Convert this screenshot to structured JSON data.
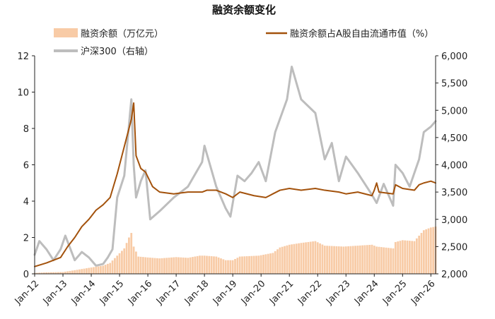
{
  "chart_data": {
    "type": "bar+line",
    "title": "融资余额变化",
    "legend": {
      "placement": "top",
      "items": [
        {
          "label": "融资余额（万亿元）",
          "kind": "bar",
          "color": "#F8CBA6"
        },
        {
          "label": "融资余额占A股自由流通市值（%）",
          "kind": "line",
          "color": "#A3520C"
        },
        {
          "label": "沪深300（右轴）",
          "kind": "line",
          "color": "#BDBDBD"
        }
      ]
    },
    "x_axis": {
      "type": "date",
      "range": [
        "2012-01",
        "2026-03"
      ],
      "tick_labels": [
        "Jan-12",
        "Jan-13",
        "Jan-14",
        "Jan-15",
        "Jan-16",
        "Jan-17",
        "Jan-18",
        "Jan-19",
        "Jan-20",
        "Jan-21",
        "Jan-22",
        "Jan-23",
        "Jan-24",
        "Jan-25",
        "Jan-26"
      ]
    },
    "y_left": {
      "range": [
        0,
        12
      ],
      "ticks": [
        "0",
        "2",
        "4",
        "6",
        "8",
        "10",
        "12"
      ]
    },
    "y_right": {
      "range": [
        2000,
        6000
      ],
      "ticks": [
        "2,000",
        "2,500",
        "3,000",
        "3,500",
        "4,000",
        "4,500",
        "5,000",
        "5,500",
        "6,000"
      ]
    },
    "grid": false,
    "series": [
      {
        "name": "融资余额（万亿元）",
        "axis": "left",
        "color": "#F8CBA6",
        "points": [
          [
            "2012-01",
            0.05
          ],
          [
            "2012-06",
            0.08
          ],
          [
            "2013-01",
            0.1
          ],
          [
            "2013-06",
            0.2
          ],
          [
            "2014-01",
            0.35
          ],
          [
            "2014-06",
            0.45
          ],
          [
            "2014-09",
            0.6
          ],
          [
            "2014-12",
            1.0
          ],
          [
            "2015-03",
            1.4
          ],
          [
            "2015-05",
            2.0
          ],
          [
            "2015-06",
            2.25
          ],
          [
            "2015-07",
            1.5
          ],
          [
            "2015-09",
            0.95
          ],
          [
            "2016-01",
            0.9
          ],
          [
            "2016-06",
            0.85
          ],
          [
            "2017-01",
            0.92
          ],
          [
            "2017-06",
            0.88
          ],
          [
            "2017-11",
            1.0
          ],
          [
            "2018-01",
            1.0
          ],
          [
            "2018-06",
            0.95
          ],
          [
            "2018-10",
            0.75
          ],
          [
            "2019-01",
            0.75
          ],
          [
            "2019-04",
            0.95
          ],
          [
            "2019-12",
            1.0
          ],
          [
            "2020-06",
            1.15
          ],
          [
            "2020-09",
            1.45
          ],
          [
            "2021-01",
            1.6
          ],
          [
            "2021-06",
            1.7
          ],
          [
            "2021-12",
            1.8
          ],
          [
            "2022-04",
            1.55
          ],
          [
            "2022-12",
            1.5
          ],
          [
            "2023-06",
            1.55
          ],
          [
            "2023-12",
            1.6
          ],
          [
            "2024-02",
            1.5
          ],
          [
            "2024-09",
            1.4
          ],
          [
            "2024-10",
            1.75
          ],
          [
            "2025-01",
            1.85
          ],
          [
            "2025-06",
            1.8
          ],
          [
            "2025-08",
            2.1
          ],
          [
            "2025-10",
            2.4
          ],
          [
            "2026-01",
            2.55
          ],
          [
            "2026-03",
            2.6
          ]
        ]
      },
      {
        "name": "融资余额占A股自由流通市值（%）",
        "axis": "left",
        "color": "#A3520C",
        "points": [
          [
            "2012-01",
            0.4
          ],
          [
            "2012-06",
            0.6
          ],
          [
            "2012-12",
            0.9
          ],
          [
            "2013-03",
            1.5
          ],
          [
            "2013-06",
            2.0
          ],
          [
            "2013-09",
            2.6
          ],
          [
            "2013-12",
            3.0
          ],
          [
            "2014-03",
            3.5
          ],
          [
            "2014-06",
            3.8
          ],
          [
            "2014-09",
            4.2
          ],
          [
            "2014-12",
            5.5
          ],
          [
            "2015-02",
            6.5
          ],
          [
            "2015-04",
            7.5
          ],
          [
            "2015-06",
            8.5
          ],
          [
            "2015-07",
            9.4
          ],
          [
            "2015-08",
            6.5
          ],
          [
            "2015-10",
            5.8
          ],
          [
            "2015-12",
            5.6
          ],
          [
            "2016-03",
            4.8
          ],
          [
            "2016-06",
            4.5
          ],
          [
            "2016-12",
            4.4
          ],
          [
            "2017-06",
            4.5
          ],
          [
            "2017-12",
            4.5
          ],
          [
            "2018-02",
            4.6
          ],
          [
            "2018-06",
            4.6
          ],
          [
            "2018-10",
            4.4
          ],
          [
            "2019-01",
            4.2
          ],
          [
            "2019-04",
            4.5
          ],
          [
            "2019-10",
            4.3
          ],
          [
            "2020-03",
            4.2
          ],
          [
            "2020-06",
            4.4
          ],
          [
            "2020-09",
            4.6
          ],
          [
            "2021-01",
            4.7
          ],
          [
            "2021-06",
            4.6
          ],
          [
            "2021-12",
            4.7
          ],
          [
            "2022-04",
            4.6
          ],
          [
            "2022-10",
            4.5
          ],
          [
            "2023-01",
            4.4
          ],
          [
            "2023-06",
            4.5
          ],
          [
            "2023-12",
            4.3
          ],
          [
            "2024-01",
            4.6
          ],
          [
            "2024-02",
            5.0
          ],
          [
            "2024-03",
            4.5
          ],
          [
            "2024-09",
            4.4
          ],
          [
            "2024-10",
            4.9
          ],
          [
            "2025-01",
            4.7
          ],
          [
            "2025-06",
            4.6
          ],
          [
            "2025-08",
            4.9
          ],
          [
            "2025-10",
            5.0
          ],
          [
            "2026-01",
            5.1
          ],
          [
            "2026-03",
            5.0
          ]
        ]
      },
      {
        "name": "沪深300（右轴）",
        "axis": "right",
        "color": "#BDBDBD",
        "points": [
          [
            "2012-01",
            2350
          ],
          [
            "2012-03",
            2600
          ],
          [
            "2012-06",
            2450
          ],
          [
            "2012-09",
            2250
          ],
          [
            "2012-12",
            2450
          ],
          [
            "2013-02",
            2700
          ],
          [
            "2013-06",
            2250
          ],
          [
            "2013-09",
            2400
          ],
          [
            "2013-12",
            2300
          ],
          [
            "2014-03",
            2150
          ],
          [
            "2014-06",
            2180
          ],
          [
            "2014-08",
            2300
          ],
          [
            "2014-10",
            2450
          ],
          [
            "2014-12",
            3400
          ],
          [
            "2015-03",
            3800
          ],
          [
            "2015-06",
            5200
          ],
          [
            "2015-07",
            4000
          ],
          [
            "2015-08",
            3400
          ],
          [
            "2015-10",
            3700
          ],
          [
            "2015-12",
            3900
          ],
          [
            "2016-02",
            3000
          ],
          [
            "2016-06",
            3150
          ],
          [
            "2016-12",
            3400
          ],
          [
            "2017-06",
            3600
          ],
          [
            "2017-12",
            4050
          ],
          [
            "2018-01",
            4350
          ],
          [
            "2018-06",
            3600
          ],
          [
            "2018-10",
            3200
          ],
          [
            "2018-12",
            3050
          ],
          [
            "2019-03",
            3800
          ],
          [
            "2019-06",
            3700
          ],
          [
            "2019-09",
            3850
          ],
          [
            "2019-12",
            4050
          ],
          [
            "2020-03",
            3700
          ],
          [
            "2020-07",
            4600
          ],
          [
            "2020-12",
            5200
          ],
          [
            "2021-02",
            5800
          ],
          [
            "2021-06",
            5200
          ],
          [
            "2021-12",
            4950
          ],
          [
            "2022-04",
            4100
          ],
          [
            "2022-07",
            4400
          ],
          [
            "2022-10",
            3700
          ],
          [
            "2023-01",
            4150
          ],
          [
            "2023-06",
            3850
          ],
          [
            "2023-12",
            3450
          ],
          [
            "2024-02",
            3300
          ],
          [
            "2024-05",
            3650
          ],
          [
            "2024-09",
            3250
          ],
          [
            "2024-10",
            4000
          ],
          [
            "2025-01",
            3850
          ],
          [
            "2025-04",
            3600
          ],
          [
            "2025-08",
            4100
          ],
          [
            "2025-10",
            4600
          ],
          [
            "2026-01",
            4700
          ],
          [
            "2026-03",
            4800
          ]
        ]
      }
    ]
  }
}
